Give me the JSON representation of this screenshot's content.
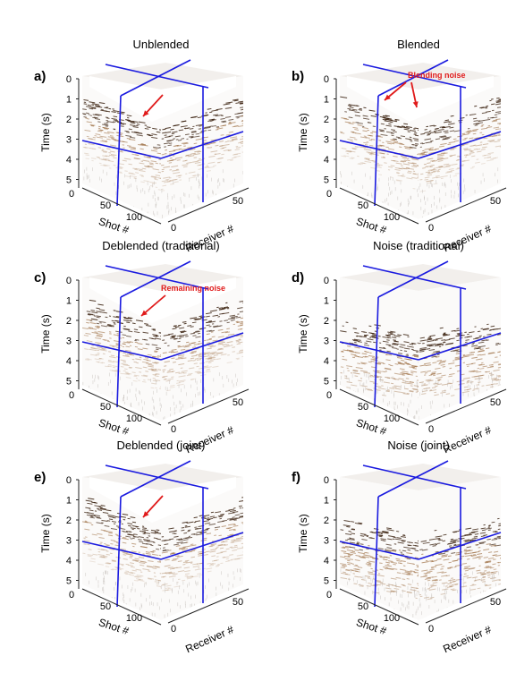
{
  "figure": {
    "axes": {
      "time_label": "Time (s)",
      "shot_label": "Shot #",
      "receiver_label": "Receiver #",
      "time_ticks": [
        "0",
        "1",
        "2",
        "3",
        "4",
        "5"
      ],
      "shot_ticks": [
        "0",
        "50",
        "100"
      ],
      "receiver_ticks": [
        "0",
        "50"
      ]
    },
    "colors": {
      "slice_lines": "#1a1adf",
      "annotation": "#e01b1b",
      "seismic_dark": "#3b2210",
      "seismic_mid": "#9a6a3d"
    },
    "panels": [
      {
        "letter": "a)",
        "title": "Unblended",
        "annotation": "",
        "type": "data"
      },
      {
        "letter": "b)",
        "title": "Blended",
        "annotation": "Blending noise",
        "type": "data"
      },
      {
        "letter": "c)",
        "title": "Deblended (traditional)",
        "annotation": "Remaining noise",
        "type": "data"
      },
      {
        "letter": "d)",
        "title": "Noise (traditional)",
        "annotation": "",
        "type": "noise"
      },
      {
        "letter": "e)",
        "title": "Deblended (joint)",
        "annotation": "",
        "type": "data"
      },
      {
        "letter": "f)",
        "title": "Noise (joint)",
        "annotation": "",
        "type": "noise"
      }
    ]
  }
}
